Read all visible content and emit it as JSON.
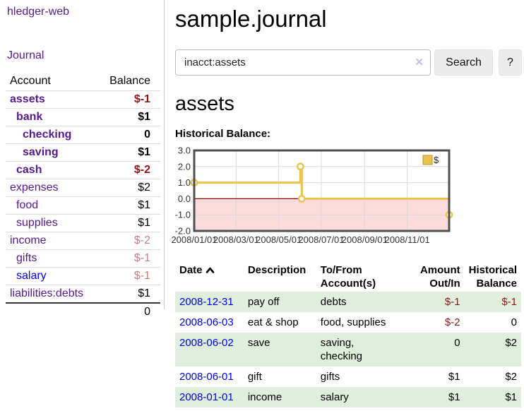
{
  "sidebar": {
    "brand": "hledger-web",
    "nav_journal": "Journal",
    "accounts_table": {
      "col_account": "Account",
      "col_balance": "Balance",
      "rows": [
        {
          "name": "assets",
          "depth": 0,
          "bold": true,
          "balance": "$-1",
          "neg": "strong",
          "link_color": "purple"
        },
        {
          "name": "bank",
          "depth": 1,
          "bold": true,
          "balance": "$1",
          "neg": "none",
          "link_color": "purple"
        },
        {
          "name": "checking",
          "depth": 2,
          "bold": true,
          "balance": "0",
          "neg": "none",
          "link_color": "purple"
        },
        {
          "name": "saving",
          "depth": 2,
          "bold": true,
          "balance": "$1",
          "neg": "none",
          "link_color": "purple"
        },
        {
          "name": "cash",
          "depth": 1,
          "bold": true,
          "balance": "$-2",
          "neg": "strong",
          "link_color": "purple"
        },
        {
          "name": "expenses",
          "depth": 0,
          "bold": false,
          "balance": "$2",
          "neg": "none",
          "link_color": "purple"
        },
        {
          "name": "food",
          "depth": 1,
          "bold": false,
          "balance": "$1",
          "neg": "none",
          "link_color": "purple"
        },
        {
          "name": "supplies",
          "depth": 1,
          "bold": false,
          "balance": "$1",
          "neg": "none",
          "link_color": "purple"
        },
        {
          "name": "income",
          "depth": 0,
          "bold": false,
          "balance": "$-2",
          "neg": "dim",
          "link_color": "purple"
        },
        {
          "name": "gifts",
          "depth": 1,
          "bold": false,
          "balance": "$-1",
          "neg": "dim",
          "link_color": "purple"
        },
        {
          "name": "salary",
          "depth": 1,
          "bold": false,
          "balance": "$-1",
          "neg": "dim",
          "link_color": "blue"
        },
        {
          "name": "liabilities:debts",
          "depth": 0,
          "bold": false,
          "balance": "$1",
          "neg": "none",
          "link_color": "purple"
        }
      ],
      "total": "0"
    }
  },
  "header": {
    "title": "sample.journal"
  },
  "search": {
    "query": "inacct:assets",
    "clear_icon": "✕",
    "button": "Search",
    "help_button": "?"
  },
  "account_page": {
    "heading": "assets",
    "chart_label": "Historical Balance:"
  },
  "chart_data": {
    "type": "line",
    "step": true,
    "x_range": [
      "2008-01-01",
      "2008-12-31"
    ],
    "ylim": [
      -2,
      3
    ],
    "series": [
      {
        "name": "$",
        "color": "#e9c34b",
        "points": [
          [
            "2008-01-01",
            1
          ],
          [
            "2008-06-01",
            2
          ],
          [
            "2008-06-03",
            0
          ],
          [
            "2008-12-31",
            -1
          ]
        ]
      }
    ],
    "yticks": [
      {
        "v": 3,
        "label": "3.0"
      },
      {
        "v": 2,
        "label": "2.0"
      },
      {
        "v": 1,
        "label": "1.0"
      },
      {
        "v": 0,
        "label": "0.0"
      },
      {
        "v": -1,
        "label": "-1.0"
      },
      {
        "v": -2,
        "label": "-2.0"
      }
    ],
    "xticks": [
      {
        "date": "2008-01-01",
        "label": "2008/01/01"
      },
      {
        "date": "2008-03-01",
        "label": "2008/03/01"
      },
      {
        "date": "2008-05-01",
        "label": "2008/05/01"
      },
      {
        "date": "2008-07-01",
        "label": "2008/07/01"
      },
      {
        "date": "2008-09-01",
        "label": "2008/09/01"
      },
      {
        "date": "2008-11-01",
        "label": "2008/11/01"
      }
    ],
    "negative_fill": "#fbdbdb",
    "zero_line_color": "#8b0000",
    "grid_color": "#d9d9d9",
    "border_color": "#4f4f4f",
    "legend": {
      "label": "$",
      "position": "top-right"
    }
  },
  "register_table": {
    "headers": [
      {
        "lines": [
          "Date"
        ],
        "align": "left",
        "sorted": true
      },
      {
        "lines": [
          "Description"
        ],
        "align": "left"
      },
      {
        "lines": [
          "To/From",
          "Account(s)"
        ],
        "align": "left"
      },
      {
        "lines": [
          "Amount",
          "Out/In"
        ],
        "align": "right"
      },
      {
        "lines": [
          "Historical",
          "Balance"
        ],
        "align": "right"
      }
    ],
    "rows": [
      {
        "date": "2008-12-31",
        "description": "pay off",
        "accounts": [
          "debts"
        ],
        "amount": "$-1",
        "amount_neg": true,
        "balance": "$-1",
        "balance_neg": true
      },
      {
        "date": "2008-06-03",
        "description": "eat & shop",
        "accounts": [
          "food, supplies"
        ],
        "amount": "$-2",
        "amount_neg": true,
        "balance": "0",
        "balance_neg": false
      },
      {
        "date": "2008-06-02",
        "description": "save",
        "accounts": [
          "saving,",
          "checking"
        ],
        "amount": "0",
        "amount_neg": false,
        "balance": "$2",
        "balance_neg": false
      },
      {
        "date": "2008-06-01",
        "description": "gift",
        "accounts": [
          "gifts"
        ],
        "amount": "$1",
        "amount_neg": false,
        "balance": "$2",
        "balance_neg": false
      },
      {
        "date": "2008-01-01",
        "description": "income",
        "accounts": [
          "salary"
        ],
        "amount": "$1",
        "amount_neg": false,
        "balance": "$1",
        "balance_neg": false
      }
    ]
  }
}
